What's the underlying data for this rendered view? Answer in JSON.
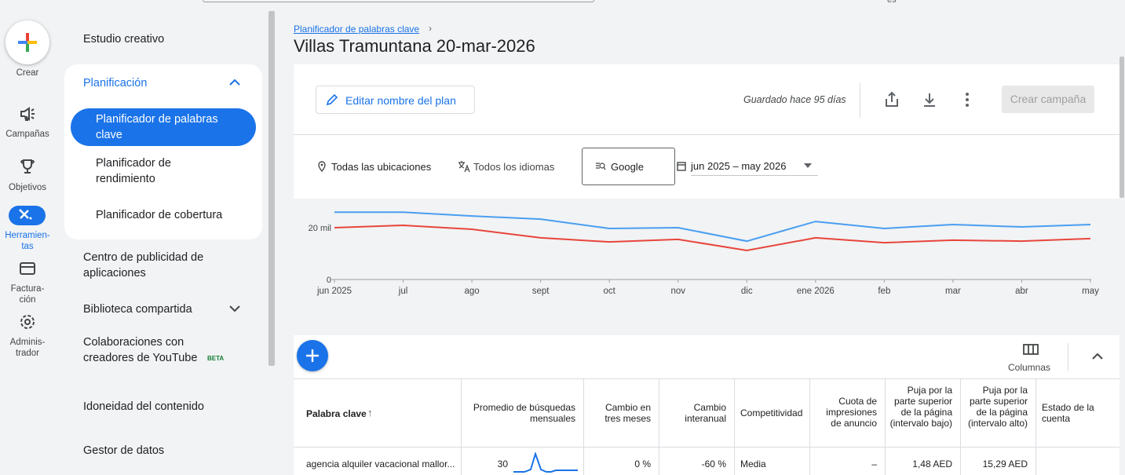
{
  "top_bar": {
    "language": "es"
  },
  "rail": {
    "create": "Crear",
    "items": [
      "Campañas",
      "Objetivos",
      "Herramien-\ntas",
      "Factura-\nción",
      "Adminis-\ntrador"
    ]
  },
  "nav": {
    "creative": "Estudio creativo",
    "planning": {
      "title": "Planificación",
      "items": [
        "Planificador de palabras clave",
        "Planificador de rendimiento",
        "Planificador de cobertura"
      ]
    },
    "items": [
      "Centro de publicidad de aplicaciones",
      "Biblioteca compartida",
      "Colaboraciones con creadores de YouTube",
      "Idoneidad del contenido",
      "Gestor de datos"
    ],
    "beta": "BETA"
  },
  "header": {
    "breadcrumb": "Planificador de palabras clave",
    "title": "Villas Tramuntana 20-mar-2026"
  },
  "toolbar": {
    "edit": "Editar nombre del plan",
    "saved": "Guardado hace 95 días",
    "create": "Crear campaña"
  },
  "filters": {
    "locations": "Todas las ubicaciones",
    "languages": "Todos los idiomas",
    "network": "Google",
    "date_range": "jun 2025 – may 2026"
  },
  "chart_data": {
    "type": "line",
    "categories": [
      "jun 2025",
      "jul",
      "ago",
      "sept",
      "oct",
      "nov",
      "dic",
      "ene 2026",
      "feb",
      "mar",
      "abr",
      "may"
    ],
    "series": [
      {
        "color": "#4a9ef0",
        "values": [
          26000,
          26000,
          24500,
          23300,
          19700,
          20000,
          14800,
          22400,
          19700,
          21200,
          20300,
          21200
        ]
      },
      {
        "color": "#e8453c",
        "values": [
          20000,
          20900,
          19400,
          16100,
          14500,
          15500,
          11200,
          16100,
          14200,
          15200,
          14800,
          15800
        ]
      }
    ],
    "ylim": [
      0,
      28000
    ],
    "yticks": [
      0,
      {
        "value": 20000,
        "label": "20 mil"
      }
    ],
    "grid": false
  },
  "table": {
    "columns_button": "Columnas",
    "headers": [
      "Palabra clave",
      "Promedio de búsquedas mensuales",
      "Cambio en tres meses",
      "Cambio interanual",
      "Competitividad",
      "Cuota de impresiones de anuncio",
      "Puja por la parte superior de la página (intervalo bajo)",
      "Puja por la parte superior de la página (intervalo alto)",
      "Estado de la cuenta"
    ],
    "rows": [
      [
        "agencia alquiler vacacional mallor...",
        "30",
        "0 %",
        "-60 %",
        "Media",
        "–",
        "1,48 AED",
        "15,29 AED"
      ]
    ]
  }
}
